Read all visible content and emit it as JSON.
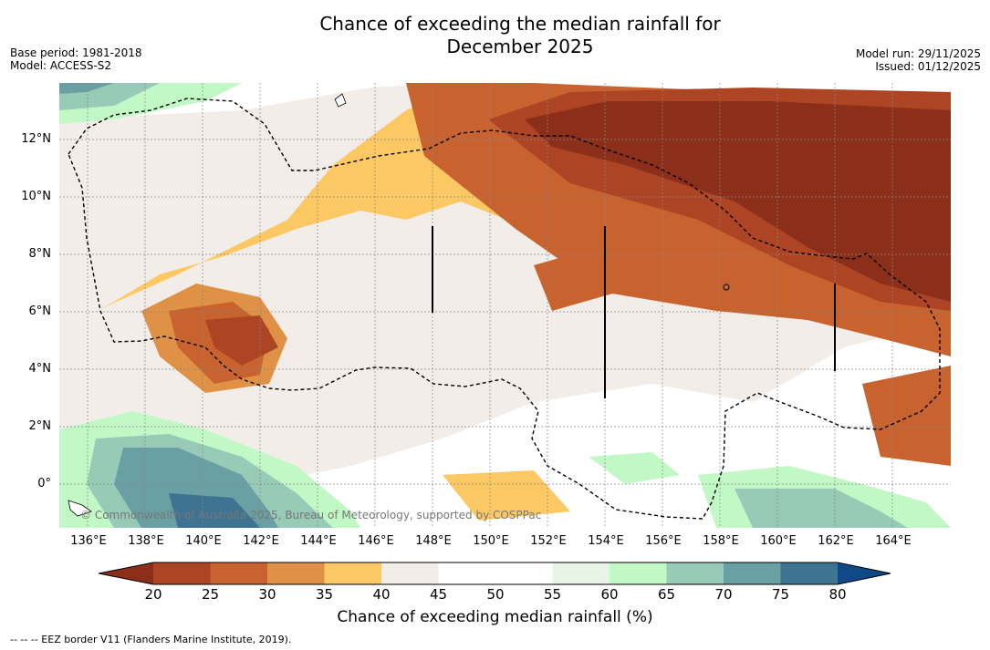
{
  "title_line1": "Chance of exceeding the median rainfall for",
  "title_line2": "December 2025",
  "base_period": "Base period: 1981-2018",
  "model": "Model: ACCESS-S2",
  "model_run": "Model run: 29/11/2025",
  "issued": "Issued: 01/12/2025",
  "copyright": "© Commonwealth of Australia 2025, Bureau of Meteorology, supported by COSPPac",
  "footnote": "--  --  -- EEZ border V11 (Flanders Marine Institute, 2019).",
  "legend": {
    "label": "Chance of exceeding median rainfall (%)",
    "ticks": [
      "20",
      "25",
      "30",
      "35",
      "40",
      "45",
      "50",
      "55",
      "60",
      "65",
      "70",
      "75",
      "80"
    ],
    "colors": [
      "#8b2e1a",
      "#ad4524",
      "#c8622f",
      "#df9146",
      "#fcc863",
      "#f2ede8",
      "#ffffff",
      "#ffffff",
      "#e7f4e6",
      "#c2f8c6",
      "#98cab8",
      "#6a9fa4",
      "#3e7392",
      "#0f4a86"
    ]
  },
  "axes": {
    "lat_labels": [
      "12°N",
      "10°N",
      "8°N",
      "6°N",
      "4°N",
      "2°N",
      "0°"
    ],
    "lon_labels": [
      "136°E",
      "138°E",
      "140°E",
      "142°E",
      "144°E",
      "146°E",
      "148°E",
      "150°E",
      "152°E",
      "154°E",
      "156°E",
      "158°E",
      "160°E",
      "162°E",
      "164°E"
    ]
  }
}
